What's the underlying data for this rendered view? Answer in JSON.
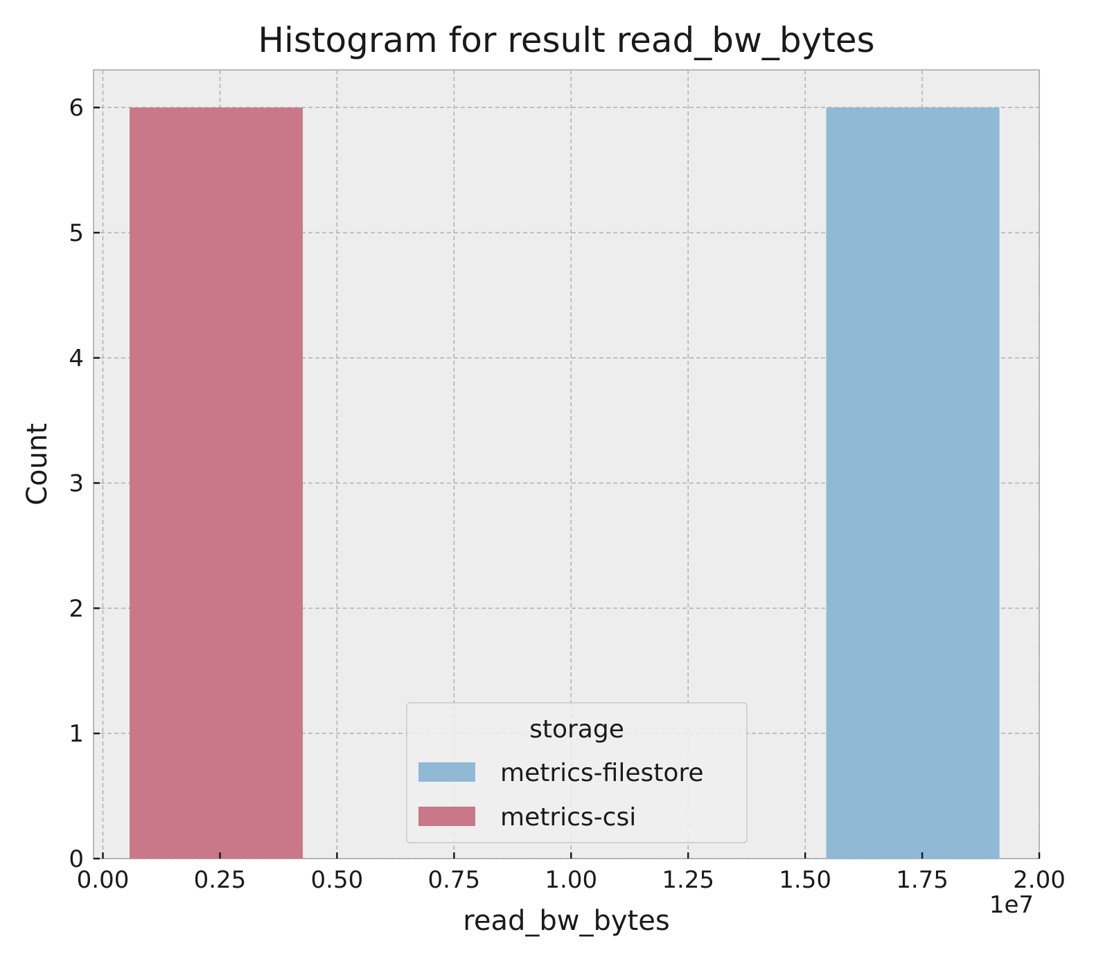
{
  "chart_data": {
    "type": "bar",
    "title": "Histogram for result read_bw_bytes",
    "xlabel": "read_bw_bytes",
    "ylabel": "Count",
    "x_offset_label": "1e7",
    "xlim": [
      -0.02,
      2.0
    ],
    "ylim": [
      0,
      6.3
    ],
    "x_ticks": [
      0.0,
      0.25,
      0.5,
      0.75,
      1.0,
      1.25,
      1.5,
      1.75,
      2.0
    ],
    "x_tick_labels": [
      "0.00",
      "0.25",
      "0.50",
      "0.75",
      "1.00",
      "1.25",
      "1.50",
      "1.75",
      "2.00"
    ],
    "y_ticks": [
      0,
      1,
      2,
      3,
      4,
      5,
      6
    ],
    "y_tick_labels": [
      "0",
      "1",
      "2",
      "3",
      "4",
      "5",
      "6"
    ],
    "grid": true,
    "legend": {
      "title": "storage",
      "placement": "lower-center"
    },
    "series": [
      {
        "name": "metrics-filestore",
        "color": "#8fb9d4",
        "bins": [
          {
            "x0": 1.545,
            "x1": 1.915,
            "count": 6
          }
        ]
      },
      {
        "name": "metrics-csi",
        "color": "#c87889",
        "bins": [
          {
            "x0": 0.057,
            "x1": 0.427,
            "count": 6
          }
        ]
      }
    ]
  }
}
